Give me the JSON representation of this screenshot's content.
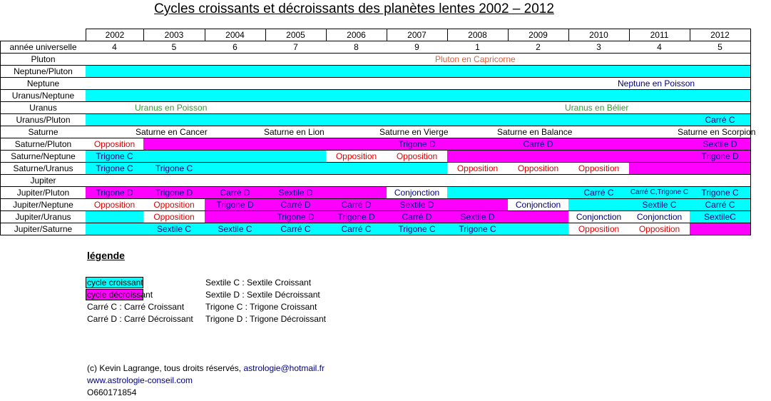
{
  "title": "Cycles croissants et décroissants des planètes lentes 2002 – 2012",
  "palette": {
    "c": "#00ffff",
    "m": "#ff00ff",
    "w": "#ffffff",
    "n": "#000080",
    "r": "#e00000",
    "o": "#e0603a",
    "g": "#339933",
    "k": "#000000"
  },
  "table": {
    "years": [
      "2002",
      "2003",
      "2004",
      "2005",
      "2006",
      "2007",
      "2008",
      "2009",
      "2010",
      "2011",
      "2012"
    ],
    "rows": [
      {
        "label": "année universelle",
        "fills": "wwwwwwwwwww",
        "inks": "kkkkkkkkkkk",
        "texts": [
          "4",
          "5",
          "6",
          "7",
          "8",
          "9",
          "1",
          "2",
          "3",
          "4",
          "5"
        ]
      },
      {
        "label": "Pluton",
        "fills": "wwwwwwwwwww",
        "inks": "ooooooooooo",
        "texts": [
          null,
          null,
          null,
          null,
          null,
          "Pluton en Capricorne",
          null,
          null,
          null,
          null,
          null
        ]
      },
      {
        "label": "Neptune/Pluton",
        "fills": "ccccccccccc",
        "inks": "nnnnnnnnnnn",
        "texts": [
          null,
          null,
          null,
          null,
          null,
          null,
          null,
          null,
          null,
          null,
          null
        ]
      },
      {
        "label": "Neptune",
        "fills": "wwwwwwwwwww",
        "inks": "nnnnnnnnnnn",
        "texts": [
          null,
          null,
          null,
          null,
          null,
          null,
          null,
          null,
          null,
          "Neptune en Poisson",
          null
        ]
      },
      {
        "label": "Uranus/Neptune",
        "fills": "ccccccccccc",
        "inks": "nnnnnnnnnnn",
        "texts": [
          null,
          null,
          null,
          null,
          null,
          null,
          null,
          null,
          null,
          null,
          null
        ]
      },
      {
        "label": "Uranus",
        "fills": "wwwwwwwwwww",
        "inks": "ggggggggggg",
        "texts": [
          "Uranus en Poisson",
          null,
          null,
          null,
          null,
          null,
          null,
          null,
          "Uranus en Bélier",
          null,
          null
        ]
      },
      {
        "label": "Uranus/Pluton",
        "fills": "ccccccccccc",
        "inks": "nnnnnnnnnnn",
        "texts": [
          null,
          null,
          null,
          null,
          null,
          null,
          null,
          null,
          null,
          null,
          "Carré C"
        ]
      },
      {
        "label": "Saturne",
        "fills": "wwwwwwwwwww",
        "inks": "kkkkkkkkkkk",
        "texts": [
          "Saturne en Cancer",
          null,
          null,
          "Saturne en Lion",
          null,
          "Saturne en Vierge",
          null,
          "Saturne en Balance",
          null,
          null,
          "Saturne en Scorpion"
        ]
      },
      {
        "label": "Saturne/Pluton",
        "fills": "wmmmmmmmmmm",
        "inks": "rnnnnnnnnnn",
        "texts": [
          "Opposition",
          null,
          null,
          null,
          null,
          "Trigone D",
          null,
          "Carré D",
          null,
          null,
          "Sextile D"
        ]
      },
      {
        "label": "Saturne/Neptune",
        "fills": "ccccwwmmmmm",
        "inks": "nnnnrrnnnnn",
        "texts": [
          "Trigone C",
          null,
          null,
          null,
          "Opposition",
          "Opposition",
          null,
          null,
          null,
          null,
          "Trigone D"
        ]
      },
      {
        "label": "Saturne/Uranus",
        "fills": "ccccccwwwmm",
        "inks": "nnnnnnrrrnn",
        "texts": [
          "Trigone C",
          "Trigone C",
          null,
          null,
          null,
          null,
          "Opposition",
          "Opposition",
          "Opposition",
          null,
          null
        ]
      },
      {
        "label": "Jupiter",
        "fills": "wwwwwwwwwww",
        "inks": "nnnnnnnnnnn",
        "texts": [
          null,
          null,
          null,
          null,
          null,
          null,
          null,
          null,
          null,
          null,
          null
        ]
      },
      {
        "label": "Jupiter/Pluton",
        "fills": "mmmmmwccccc",
        "inks": "nnnnnnnnnnn",
        "texts": [
          "Trigone D",
          "Trigone D",
          "Carré D",
          "Sextile D",
          null,
          "Conjonction",
          null,
          null,
          "Carré C",
          "Carré C,Trigone C",
          "Trigone C"
        ]
      },
      {
        "label": "Jupiter/Neptune",
        "fills": "wwmmmmmwccc",
        "inks": "rrnnnnnnnnn",
        "texts": [
          "Opposition",
          "Opposition",
          "Trigone D",
          "Carré D",
          "Carré D",
          "Sextile D",
          null,
          "Conjonction",
          null,
          "Sextile C",
          "Carré C"
        ]
      },
      {
        "label": "Jupiter/Uranus",
        "fills": "cwmmmmmmwwc",
        "inks": "nrnnnnnnnnn",
        "texts": [
          null,
          "Opposition",
          null,
          "Trigone D",
          "Trigone D",
          "Carré D",
          "Sextile D",
          null,
          "Conjonction",
          "Conjonction",
          "SextileC"
        ]
      },
      {
        "label": "Jupiter/Saturne",
        "fills": "ccccccccwwm",
        "inks": "nnnnnnnnrrn",
        "texts": [
          null,
          "Sextile C",
          "Sextile C",
          "Carré C",
          "Carré C",
          "Trigone C",
          "Trigone C",
          null,
          "Opposition",
          "Opposition",
          null
        ]
      }
    ]
  },
  "legend": {
    "title": "légende",
    "swatches": [
      {
        "text": "cycle croissant",
        "fill": "c"
      },
      {
        "text": "cycle décroissant",
        "fill": "m"
      }
    ],
    "left_items": [
      "Carré C : Carré Croissant",
      "Carré D : Carré Décroissant"
    ],
    "right_items": [
      "Sextile C : Sextile Croissant",
      "Sextile D : Sextile Décroissant",
      "Trigone C : Trigone Croissant",
      "Trigone D : Trigone Décroissant"
    ]
  },
  "footer": {
    "copyright": "(c) Kevin Lagrange, tous droits réservés,",
    "email": "astrologie@hotmail.fr",
    "website": "www.astrologie-conseil.com",
    "phone": "O660171854"
  }
}
